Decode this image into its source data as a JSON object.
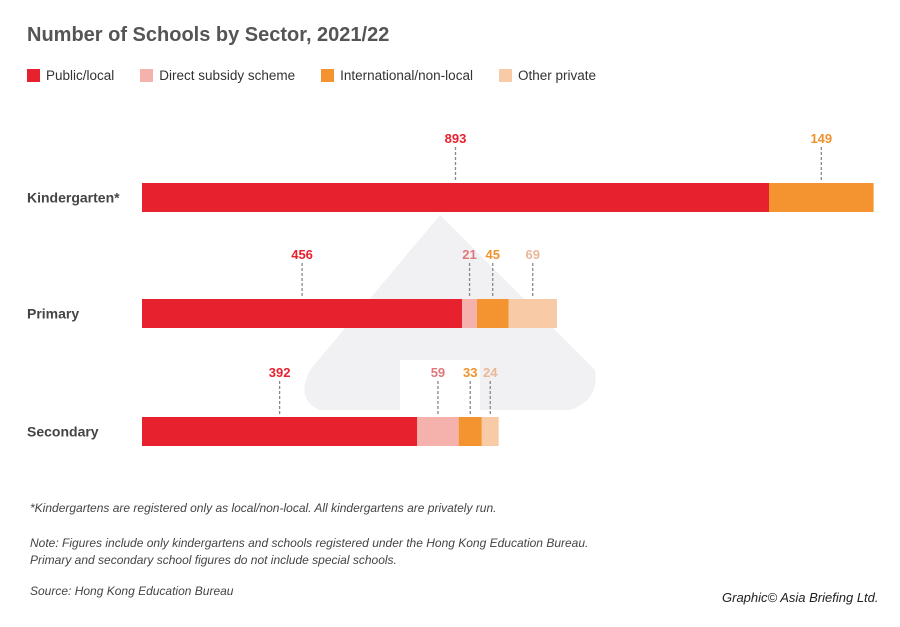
{
  "chart_data": {
    "type": "bar",
    "orientation": "horizontal",
    "stacked": true,
    "title": "Number of Schools by Sector, 2021/22",
    "categories": [
      "Kindergarten*",
      "Primary",
      "Secondary"
    ],
    "series": [
      {
        "name": "Public/local",
        "color": "#e8212f",
        "label_color": "#e8212f",
        "values": [
          893,
          456,
          392
        ]
      },
      {
        "name": "Direct subsidy scheme",
        "color": "#f5b2ad",
        "label_color": "#e0787a",
        "values": [
          null,
          21,
          59
        ]
      },
      {
        "name": "International/non-local",
        "color": "#f39431",
        "label_color": "#f0922e",
        "values": [
          149,
          45,
          33
        ]
      },
      {
        "name": "Other private",
        "color": "#f8caa6",
        "label_color": "#e8b898",
        "values": [
          null,
          69,
          24
        ]
      }
    ],
    "legend_position": "top-left",
    "grid": false,
    "axes_visible": false
  },
  "footnotes": {
    "asterisk": "*Kindergartens are registered only as local/non-local. All kindergartens are privately run.",
    "note_line1": "Note: Figures include only kindergartens and schools registered under the Hong Kong Education Bureau.",
    "note_line2": "Primary and secondary school figures do not include special schools.",
    "source": "Source: Hong Kong Education Bureau",
    "credit": "Graphic© Asia Briefing Ltd."
  }
}
